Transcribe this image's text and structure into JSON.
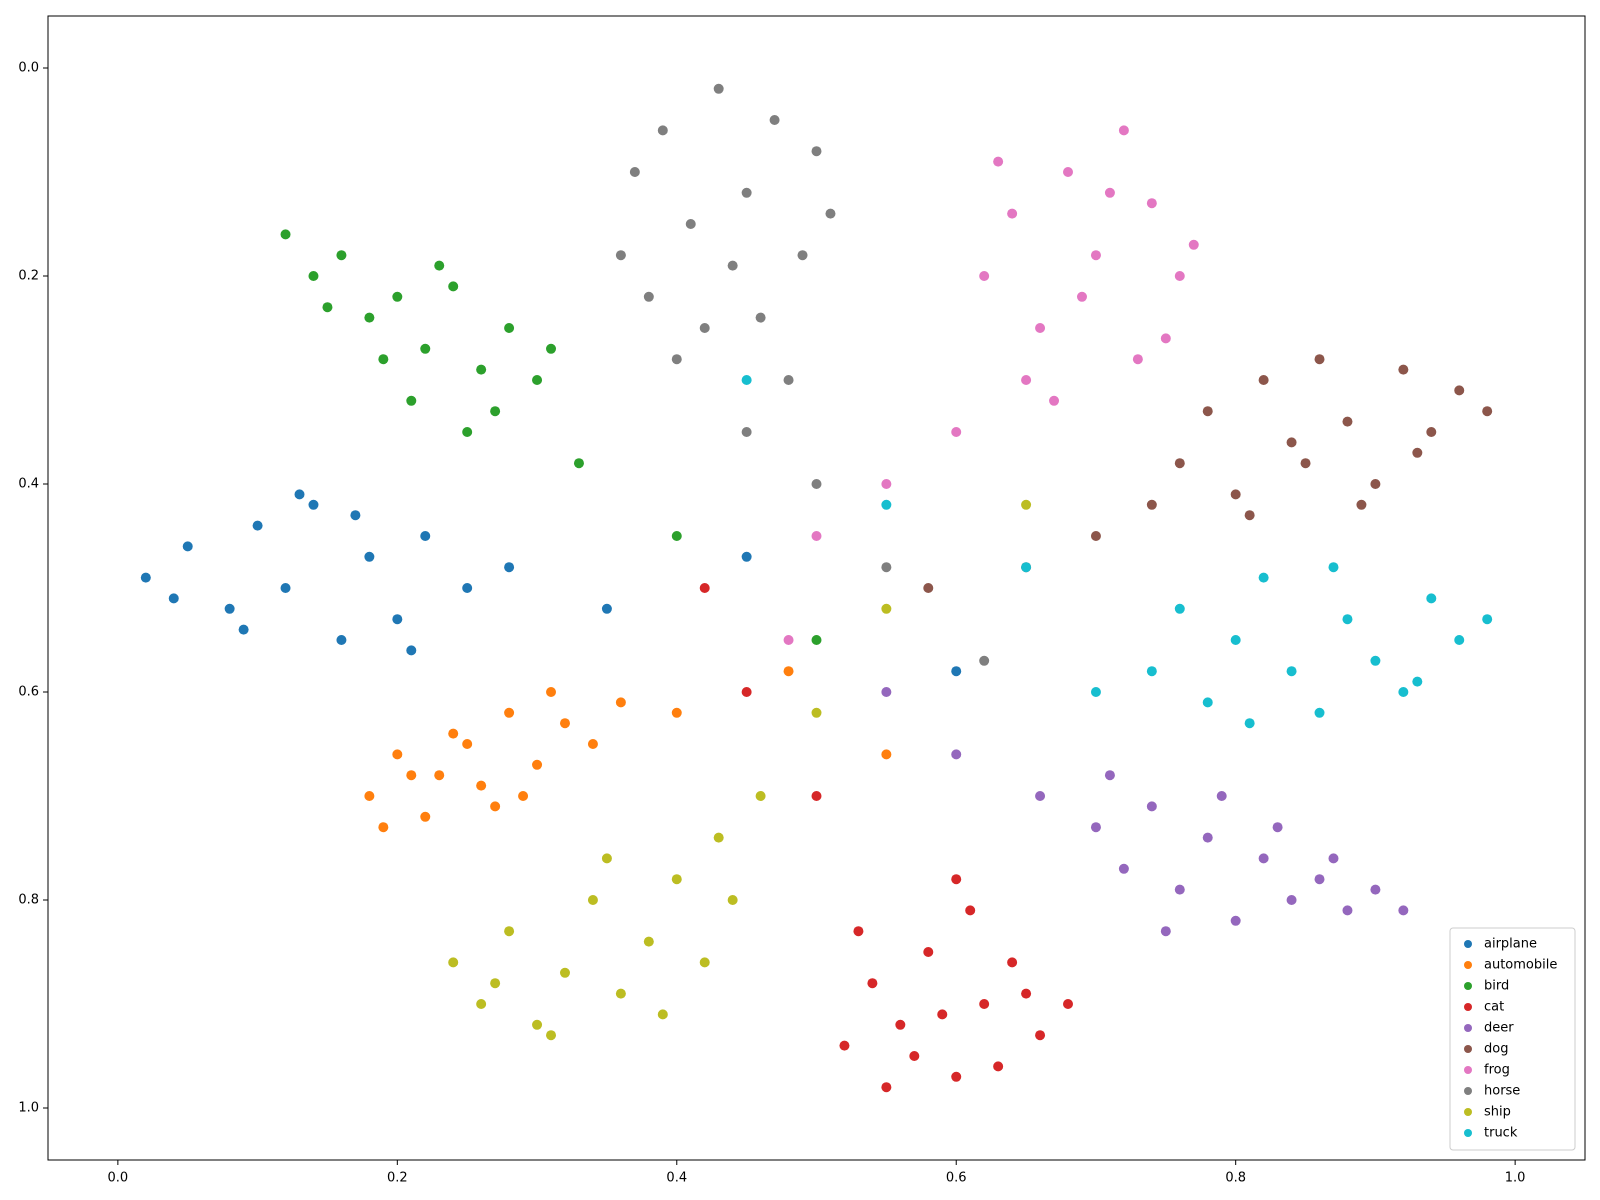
{
  "chart_data": {
    "type": "scatter",
    "xlim": [
      -0.05,
      1.05
    ],
    "ylim": [
      1.05,
      -0.05
    ],
    "xticks": [
      {
        "value": 0,
        "label": "0.0"
      },
      0.2,
      0.4,
      0.6,
      0.8,
      {
        "value": 1,
        "label": "1.0"
      }
    ],
    "yticks": [
      {
        "value": 0,
        "label": "0.0"
      },
      0.2,
      0.4,
      0.6,
      0.8,
      {
        "value": 1,
        "label": "1.0"
      }
    ],
    "legend": "lower right",
    "series": [
      {
        "name": "airplane",
        "color": "#1f77b4",
        "x": [
          0.02,
          0.05,
          0.08,
          0.1,
          0.12,
          0.14,
          0.16,
          0.18,
          0.2,
          0.22,
          0.25,
          0.28,
          0.04,
          0.09,
          0.13,
          0.17,
          0.21,
          0.35,
          0.45,
          0.6
        ],
        "y": [
          0.49,
          0.46,
          0.52,
          0.44,
          0.5,
          0.42,
          0.55,
          0.47,
          0.53,
          0.45,
          0.5,
          0.48,
          0.51,
          0.54,
          0.41,
          0.43,
          0.56,
          0.52,
          0.47,
          0.58
        ]
      },
      {
        "name": "automobile",
        "color": "#ff7f0e",
        "x": [
          0.18,
          0.2,
          0.22,
          0.24,
          0.26,
          0.28,
          0.3,
          0.32,
          0.19,
          0.23,
          0.27,
          0.31,
          0.34,
          0.36,
          0.21,
          0.25,
          0.29,
          0.4,
          0.48,
          0.55
        ],
        "y": [
          0.7,
          0.66,
          0.72,
          0.64,
          0.69,
          0.62,
          0.67,
          0.63,
          0.73,
          0.68,
          0.71,
          0.6,
          0.65,
          0.61,
          0.68,
          0.65,
          0.7,
          0.62,
          0.58,
          0.66
        ]
      },
      {
        "name": "bird",
        "color": "#2ca02c",
        "x": [
          0.12,
          0.14,
          0.16,
          0.18,
          0.2,
          0.22,
          0.24,
          0.26,
          0.28,
          0.3,
          0.15,
          0.19,
          0.23,
          0.27,
          0.31,
          0.21,
          0.25,
          0.33,
          0.4,
          0.5
        ],
        "y": [
          0.16,
          0.2,
          0.18,
          0.24,
          0.22,
          0.27,
          0.21,
          0.29,
          0.25,
          0.3,
          0.23,
          0.28,
          0.19,
          0.33,
          0.27,
          0.32,
          0.35,
          0.38,
          0.45,
          0.55
        ]
      },
      {
        "name": "cat",
        "color": "#d62728",
        "x": [
          0.52,
          0.54,
          0.56,
          0.58,
          0.6,
          0.62,
          0.64,
          0.66,
          0.53,
          0.57,
          0.61,
          0.65,
          0.55,
          0.59,
          0.63,
          0.68,
          0.5,
          0.45,
          0.42,
          0.6
        ],
        "y": [
          0.94,
          0.88,
          0.92,
          0.85,
          0.97,
          0.9,
          0.86,
          0.93,
          0.83,
          0.95,
          0.81,
          0.89,
          0.98,
          0.91,
          0.96,
          0.9,
          0.7,
          0.6,
          0.5,
          0.78
        ]
      },
      {
        "name": "deer",
        "color": "#9467bd",
        "x": [
          0.7,
          0.72,
          0.74,
          0.76,
          0.78,
          0.8,
          0.82,
          0.84,
          0.86,
          0.88,
          0.9,
          0.92,
          0.75,
          0.79,
          0.83,
          0.87,
          0.71,
          0.66,
          0.6,
          0.55
        ],
        "y": [
          0.73,
          0.77,
          0.71,
          0.79,
          0.74,
          0.82,
          0.76,
          0.8,
          0.78,
          0.81,
          0.79,
          0.81,
          0.83,
          0.7,
          0.73,
          0.76,
          0.68,
          0.7,
          0.66,
          0.6
        ]
      },
      {
        "name": "dog",
        "color": "#8c564b",
        "x": [
          0.76,
          0.78,
          0.8,
          0.82,
          0.84,
          0.86,
          0.88,
          0.9,
          0.92,
          0.94,
          0.96,
          0.98,
          0.81,
          0.85,
          0.89,
          0.93,
          0.74,
          0.7,
          0.65,
          0.58
        ],
        "y": [
          0.38,
          0.33,
          0.41,
          0.3,
          0.36,
          0.28,
          0.34,
          0.4,
          0.29,
          0.35,
          0.31,
          0.33,
          0.43,
          0.38,
          0.42,
          0.37,
          0.42,
          0.45,
          0.48,
          0.5
        ]
      },
      {
        "name": "frog",
        "color": "#e377c2",
        "x": [
          0.62,
          0.64,
          0.66,
          0.68,
          0.7,
          0.72,
          0.74,
          0.76,
          0.65,
          0.69,
          0.73,
          0.77,
          0.63,
          0.67,
          0.71,
          0.75,
          0.6,
          0.55,
          0.5,
          0.48
        ],
        "y": [
          0.2,
          0.14,
          0.25,
          0.1,
          0.18,
          0.06,
          0.13,
          0.2,
          0.3,
          0.22,
          0.28,
          0.17,
          0.09,
          0.32,
          0.12,
          0.26,
          0.35,
          0.4,
          0.45,
          0.55
        ]
      },
      {
        "name": "horse",
        "color": "#7f7f7f",
        "x": [
          0.37,
          0.39,
          0.41,
          0.43,
          0.45,
          0.47,
          0.49,
          0.51,
          0.38,
          0.42,
          0.46,
          0.5,
          0.4,
          0.44,
          0.48,
          0.36,
          0.45,
          0.5,
          0.55,
          0.62
        ],
        "y": [
          0.1,
          0.06,
          0.15,
          0.02,
          0.12,
          0.05,
          0.18,
          0.14,
          0.22,
          0.25,
          0.24,
          0.08,
          0.28,
          0.19,
          0.3,
          0.18,
          0.35,
          0.4,
          0.48,
          0.57
        ]
      },
      {
        "name": "ship",
        "color": "#bcbd22",
        "x": [
          0.24,
          0.26,
          0.28,
          0.3,
          0.32,
          0.34,
          0.36,
          0.38,
          0.4,
          0.42,
          0.44,
          0.27,
          0.31,
          0.35,
          0.39,
          0.43,
          0.46,
          0.5,
          0.55,
          0.65
        ],
        "y": [
          0.86,
          0.9,
          0.83,
          0.92,
          0.87,
          0.8,
          0.89,
          0.84,
          0.78,
          0.86,
          0.8,
          0.88,
          0.93,
          0.76,
          0.91,
          0.74,
          0.7,
          0.62,
          0.52,
          0.42
        ]
      },
      {
        "name": "truck",
        "color": "#17becf",
        "x": [
          0.74,
          0.76,
          0.78,
          0.8,
          0.82,
          0.84,
          0.86,
          0.88,
          0.9,
          0.92,
          0.94,
          0.96,
          0.98,
          0.81,
          0.87,
          0.93,
          0.7,
          0.65,
          0.55,
          0.45
        ],
        "y": [
          0.58,
          0.52,
          0.61,
          0.55,
          0.49,
          0.58,
          0.62,
          0.53,
          0.57,
          0.6,
          0.51,
          0.55,
          0.53,
          0.63,
          0.48,
          0.59,
          0.6,
          0.48,
          0.42,
          0.3
        ]
      }
    ]
  }
}
